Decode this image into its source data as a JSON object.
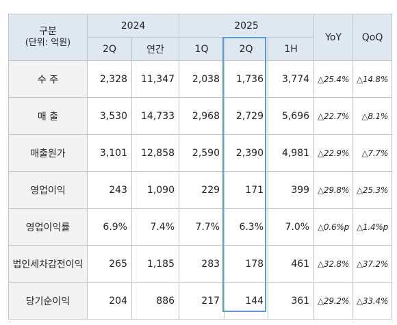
{
  "table": {
    "corner_label": "구분",
    "corner_sublabel": "(단위: 억원)",
    "year_groups": [
      "2024",
      "2025"
    ],
    "columns": [
      "2Q",
      "연간",
      "1Q",
      "2Q",
      "1H"
    ],
    "yoy_label": "YoY",
    "qoq_label": "QoQ",
    "rows": [
      {
        "label": "수 주",
        "values": [
          "2,328",
          "11,347",
          "2,038",
          "1,736",
          "3,774"
        ],
        "yoy": "△25.4%",
        "qoq": "△14.8%"
      },
      {
        "label": "매 출",
        "values": [
          "3,530",
          "14,733",
          "2,968",
          "2,729",
          "5,696"
        ],
        "yoy": "△22.7%",
        "qoq": "△8.1%"
      },
      {
        "label": "매출원가",
        "values": [
          "3,101",
          "12,858",
          "2,590",
          "2,390",
          "4,981"
        ],
        "yoy": "△22.9%",
        "qoq": "△7.7%"
      },
      {
        "label": "영업이익",
        "values": [
          "243",
          "1,090",
          "229",
          "171",
          "399"
        ],
        "yoy": "△29.8%",
        "qoq": "△25.3%"
      },
      {
        "label": "영업이익률",
        "values": [
          "6.9%",
          "7.4%",
          "7.7%",
          "6.3%",
          "7.0%"
        ],
        "yoy": "△0.6%p",
        "qoq": "△1.4%p"
      },
      {
        "label": "법인세차감전이익",
        "values": [
          "265",
          "1,185",
          "283",
          "178",
          "461"
        ],
        "yoy": "△32.8%",
        "qoq": "△37.2%"
      },
      {
        "label": "당기순이익",
        "values": [
          "204",
          "886",
          "217",
          "144",
          "361"
        ],
        "yoy": "△29.2%",
        "qoq": "△33.4%"
      }
    ]
  },
  "highlight": {
    "column": "2025 2Q",
    "color": "#5b9bd5"
  },
  "colors": {
    "header_bg": "#dfe7f0",
    "label_bg": "#f2f2f2",
    "border": "#bfc5cc"
  }
}
